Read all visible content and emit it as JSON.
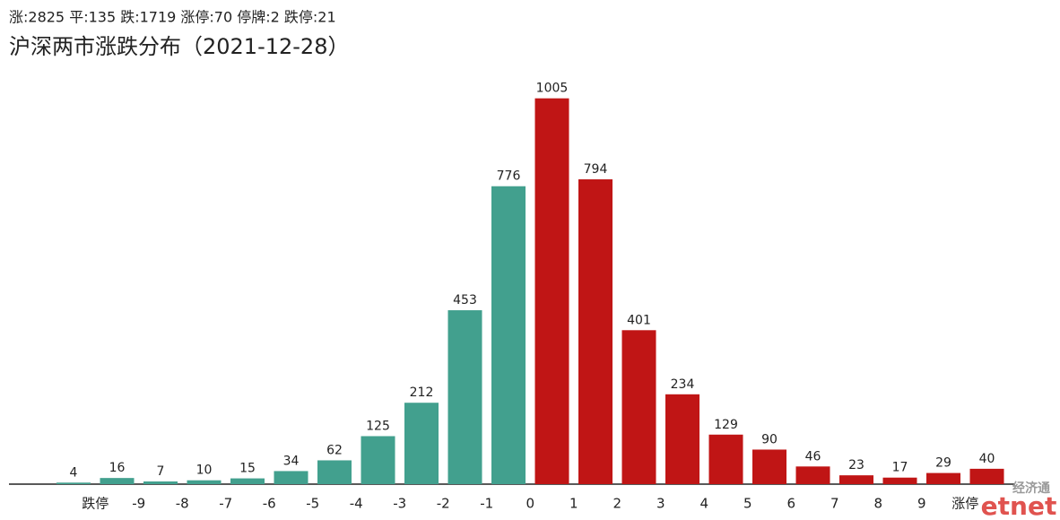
{
  "chart_data": {
    "type": "bar",
    "subtitle": "涨:2825 平:135 跌:1719 涨停:70 停牌:2 跌停:21",
    "title": "沪深两市涨跌分布（2021-12-28）",
    "boundary_labels": [
      "跌停",
      "-9",
      "-8",
      "-7",
      "-6",
      "-5",
      "-4",
      "-3",
      "-2",
      "-1",
      "0",
      "1",
      "2",
      "3",
      "4",
      "5",
      "6",
      "7",
      "8",
      "9",
      "涨停"
    ],
    "values": [
      4,
      16,
      7,
      10,
      15,
      34,
      62,
      125,
      212,
      453,
      776,
      1005,
      794,
      401,
      234,
      129,
      90,
      46,
      23,
      17,
      29,
      40
    ],
    "colors": [
      "#42a08e",
      "#42a08e",
      "#42a08e",
      "#42a08e",
      "#42a08e",
      "#42a08e",
      "#42a08e",
      "#42a08e",
      "#42a08e",
      "#42a08e",
      "#42a08e",
      "#c01515",
      "#c01515",
      "#c01515",
      "#c01515",
      "#c01515",
      "#c01515",
      "#c01515",
      "#c01515",
      "#c01515",
      "#c01515",
      "#c01515"
    ],
    "ylim": [
      0,
      1100
    ],
    "logo": {
      "cn": "经济通",
      "en": "etnet"
    }
  }
}
